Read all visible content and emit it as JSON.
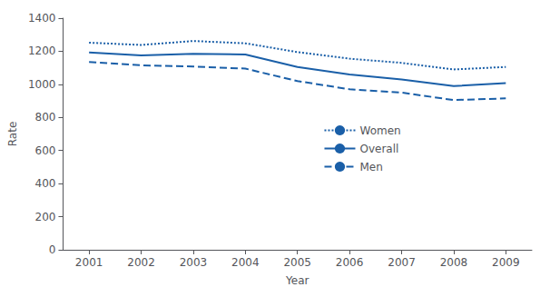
{
  "chart_data": {
    "type": "line",
    "xlabel": "Year",
    "ylabel": "Rate",
    "x": [
      2001,
      2002,
      2003,
      2004,
      2005,
      2006,
      2007,
      2008,
      2009
    ],
    "series": [
      {
        "name": "Women",
        "color": "#1a5fa8",
        "line_style": "dotted",
        "values": [
          1252,
          1238,
          1262,
          1248,
          1195,
          1155,
          1130,
          1090,
          1105
        ]
      },
      {
        "name": "Overall",
        "color": "#1a5fa8",
        "line_style": "solid",
        "values": [
          1193,
          1175,
          1185,
          1180,
          1105,
          1060,
          1030,
          990,
          1007
        ]
      },
      {
        "name": "Men",
        "color": "#1a5fa8",
        "line_style": "dashed",
        "values": [
          1135,
          1115,
          1108,
          1095,
          1020,
          970,
          950,
          905,
          915
        ]
      }
    ],
    "xlim": [
      2000.5,
      2009.5
    ],
    "xticks": [
      2001,
      2002,
      2003,
      2004,
      2005,
      2006,
      2007,
      2008,
      2009
    ],
    "ylim": [
      0,
      1400
    ],
    "yticks": [
      0,
      200,
      400,
      600,
      800,
      1000,
      1200,
      1400
    ],
    "grid": false,
    "legend": "center"
  }
}
